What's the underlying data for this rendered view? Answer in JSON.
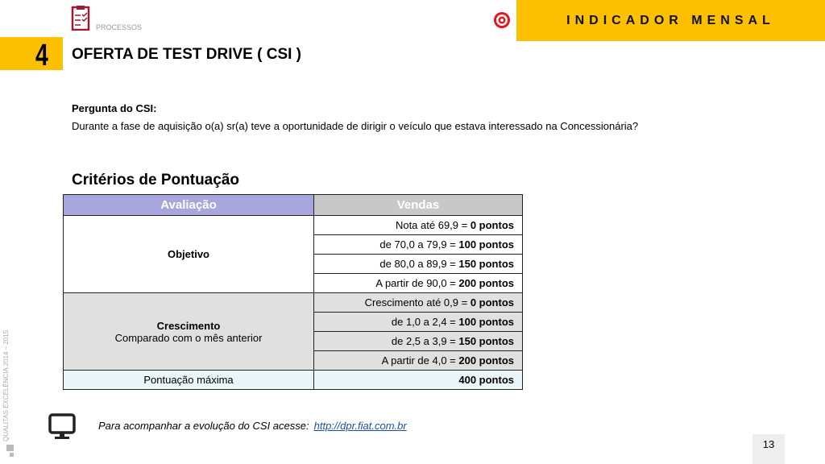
{
  "header": {
    "section": "PROCESSOS",
    "banner": "INDICADOR MENSAL",
    "number": "4",
    "title": "OFERTA DE TEST DRIVE  ( CSI )"
  },
  "question": {
    "label": "Pergunta do CSI:",
    "text": "Durante a fase de aquisição o(a) sr(a) teve a oportunidade de dirigir o veículo que estava interessado na Concessionária?"
  },
  "criteria": {
    "title": "Critérios de Pontuação",
    "columns": [
      "Avaliação",
      "Vendas"
    ],
    "objetivo": {
      "label": "Objetivo",
      "rows": [
        {
          "range": "Nota até  69,9 = ",
          "points": "0 pontos"
        },
        {
          "range": "de  70,0  a  79,9  = ",
          "points": "100 pontos"
        },
        {
          "range": "de  80,0  a  89,9  = ",
          "points": "150 pontos"
        },
        {
          "range": "A partir de  90,0  = ",
          "points": "200 pontos"
        }
      ]
    },
    "crescimento": {
      "label": "Crescimento",
      "sub": "Comparado com o mês anterior",
      "rows": [
        {
          "range": "Crescimento  até  0,9 = ",
          "points": "0 pontos"
        },
        {
          "range": "de 1,0 a  2,4  = ",
          "points": "100 pontos"
        },
        {
          "range": "de 2,5 a  3,9  = ",
          "points": "150 pontos"
        },
        {
          "range": "A partir de 4,0  = ",
          "points": "200 pontos"
        }
      ]
    },
    "max": {
      "label": "Pontuação máxima",
      "points": "400 pontos"
    }
  },
  "footer": {
    "text": "Para acompanhar a evolução do CSI acesse:",
    "link": "http://dpr.fiat.com.br",
    "side": "QUALITAS EXCELÊNCIA 2014 – 2015",
    "page": "13"
  },
  "colors": {
    "accent": "#fdc000",
    "header_purple": "#a7a7dd",
    "header_gray": "#c8c8c8"
  }
}
